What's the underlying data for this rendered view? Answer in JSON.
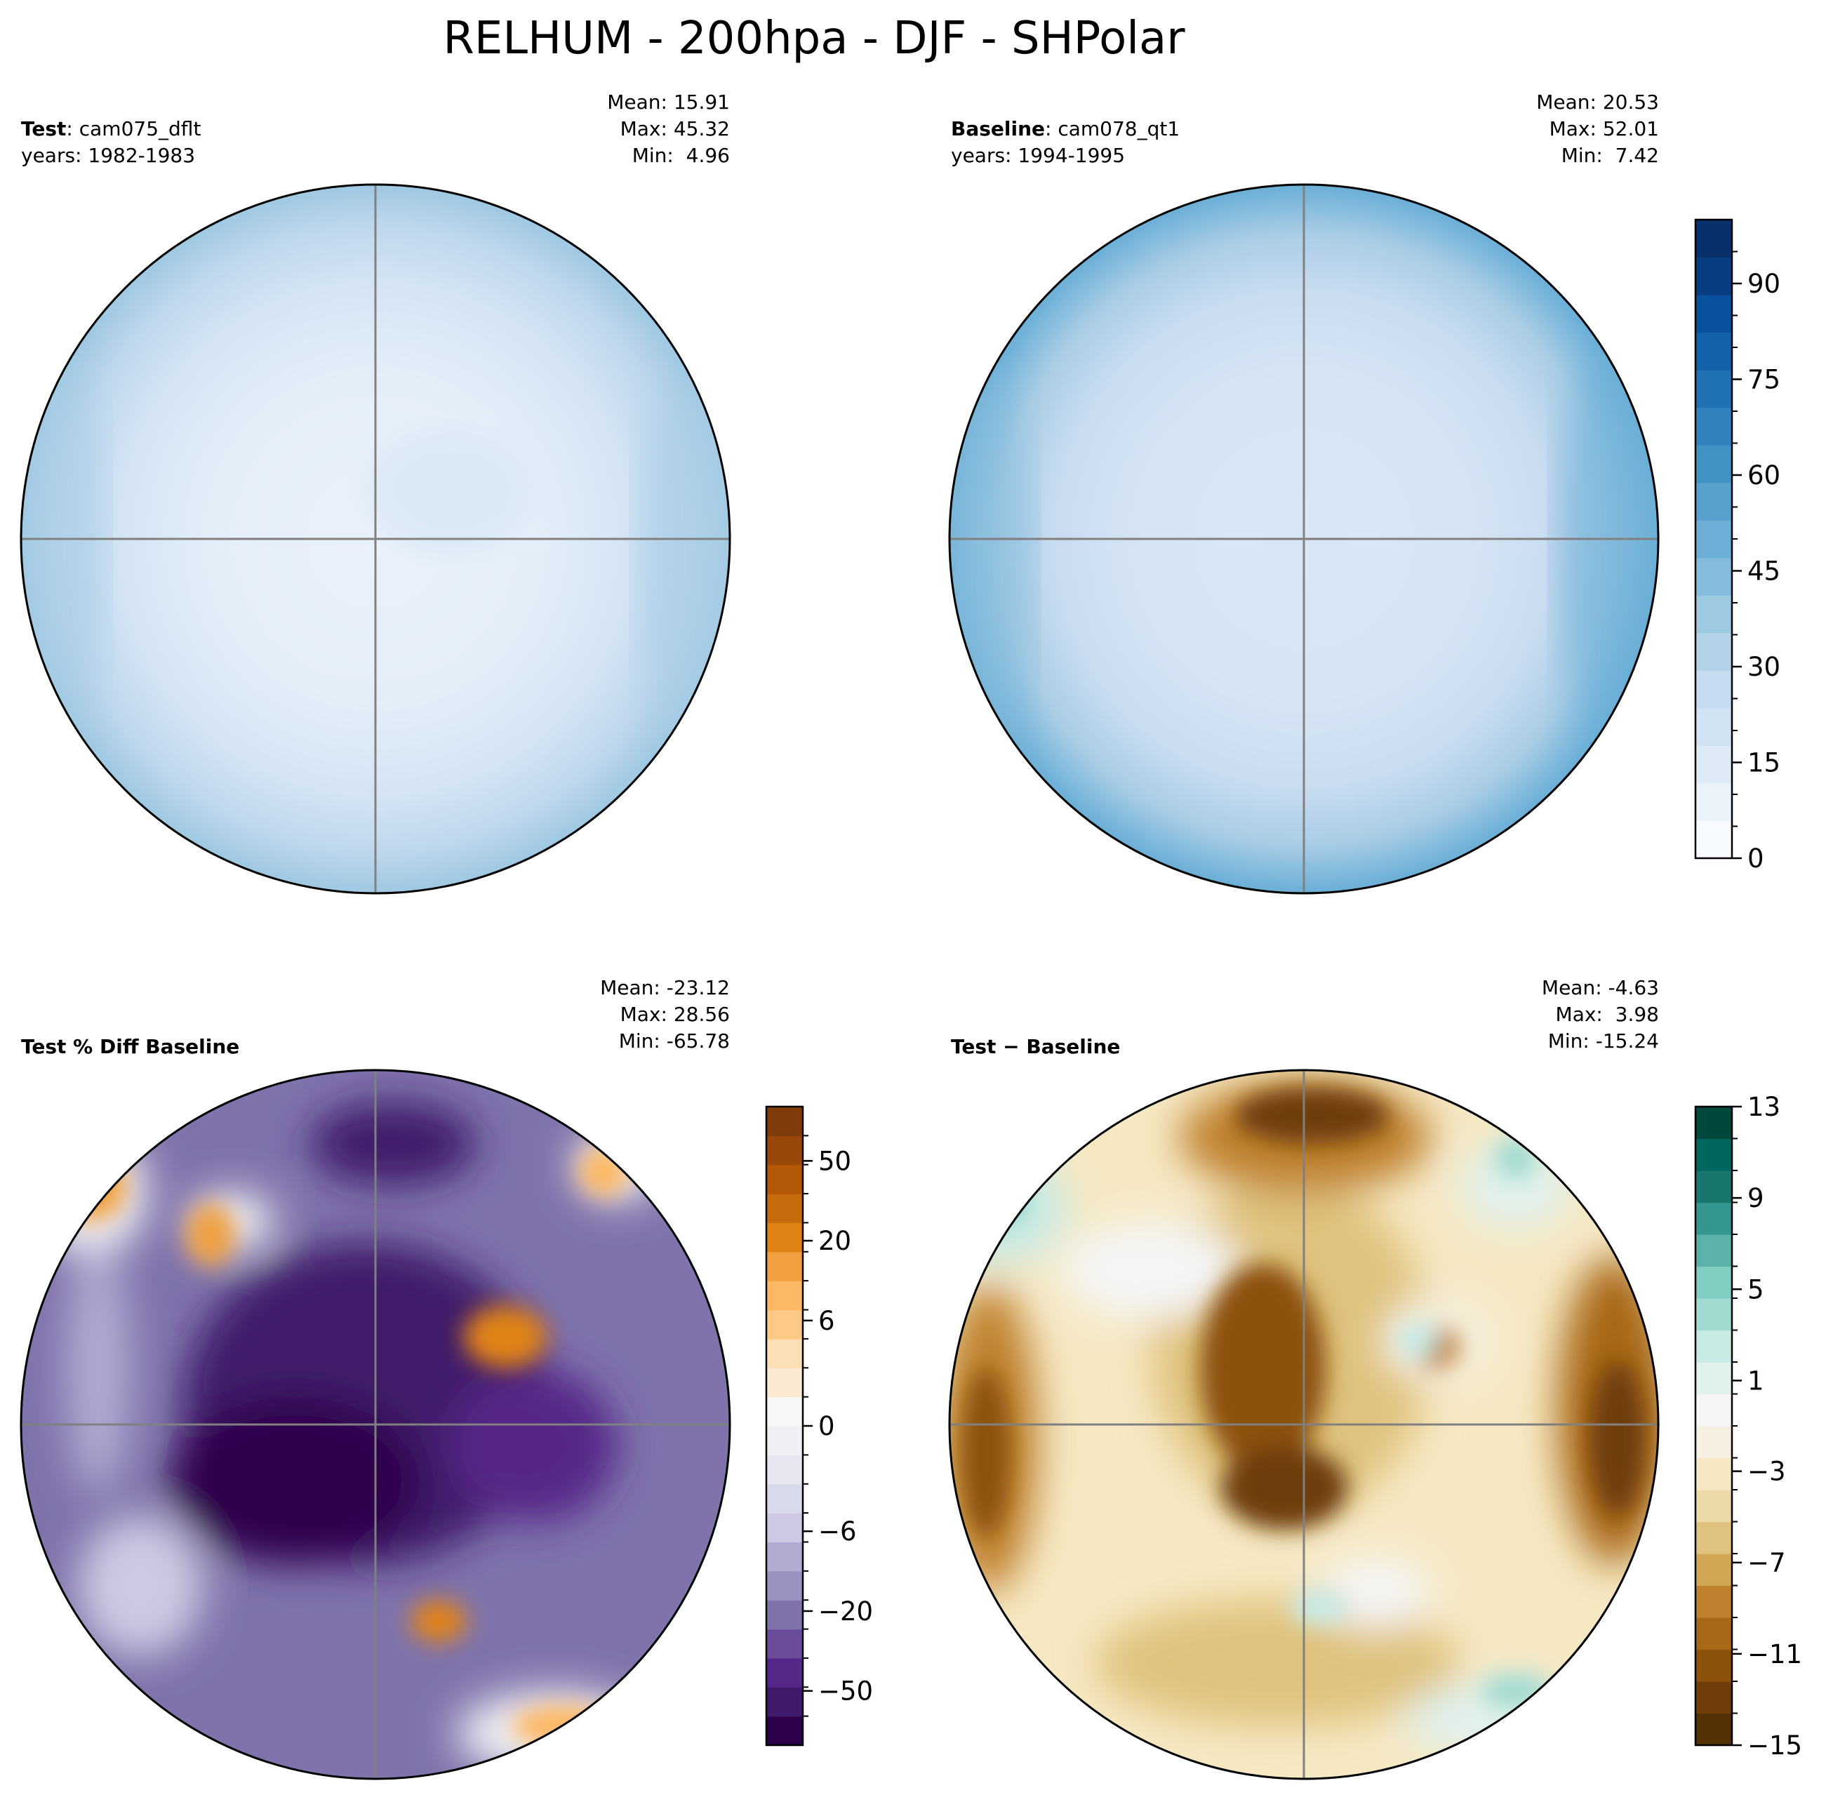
{
  "figure": {
    "title": "RELHUM - 200hpa - DJF - SHPolar"
  },
  "panels": {
    "test": {
      "label_bold": "Test",
      "label_rest": ": cam075_dflt",
      "years": "years: 1982-1983",
      "mean": "Mean: 15.91",
      "max": "Max: 45.32",
      "min": "Min:  4.96"
    },
    "baseline": {
      "label_bold": "Baseline",
      "label_rest": ": cam078_qt1",
      "years": "years: 1994-1995",
      "mean": "Mean: 20.53",
      "max": "Max: 52.01",
      "min": "Min:  7.42"
    },
    "pctdiff": {
      "label_bold": "Test % Diff Baseline",
      "mean": "Mean: -23.12",
      "max": "Max: 28.56",
      "min": "Min: -65.78"
    },
    "diff": {
      "label_bold": "Test − Baseline",
      "mean": "Mean: -4.63",
      "max": "Max:  3.98",
      "min": "Min: -15.24"
    }
  },
  "chart_data": [
    {
      "type": "heatmap",
      "panel": "test",
      "projection": "south polar stereographic",
      "colormap": "Blues",
      "field_description": "relative humidity, low (~5-15) over Antarctica, increasing to ~40 at outer rim",
      "stats": {
        "mean": 15.91,
        "max": 45.32,
        "min": 4.96
      }
    },
    {
      "type": "heatmap",
      "panel": "baseline",
      "projection": "south polar stereographic",
      "colormap": "Blues",
      "stats": {
        "mean": 20.53,
        "max": 52.01,
        "min": 7.42
      },
      "colorbar": {
        "ticks": [
          0,
          15,
          30,
          45,
          60,
          75,
          90
        ],
        "range": [
          0,
          100
        ]
      }
    },
    {
      "type": "heatmap",
      "panel": "pctdiff",
      "projection": "south polar stereographic",
      "colormap": "PuOr",
      "stats": {
        "mean": -23.12,
        "max": 28.56,
        "min": -65.78
      },
      "colorbar": {
        "ticks": [
          50,
          20,
          6,
          0,
          -6,
          -20,
          -50
        ]
      }
    },
    {
      "type": "heatmap",
      "panel": "diff",
      "projection": "south polar stereographic",
      "colormap": "BrBG",
      "stats": {
        "mean": -4.63,
        "max": 3.98,
        "min": -15.24
      },
      "colorbar": {
        "ticks": [
          13,
          9,
          5,
          1,
          -3,
          -7,
          -11,
          -15
        ],
        "range": [
          -15,
          13
        ]
      }
    }
  ],
  "colorbars": {
    "blues": {
      "ticks": [
        "90",
        "75",
        "60",
        "45",
        "30",
        "15",
        "0"
      ],
      "colors": [
        "#f7fbff",
        "#ebf3fb",
        "#deebf7",
        "#d2e3f3",
        "#c6dbef",
        "#b3d3e8",
        "#9ecae1",
        "#85bcdc",
        "#6baed6",
        "#58a1cf",
        "#4292c6",
        "#3282be",
        "#2171b5",
        "#1361a9",
        "#08519c",
        "#083e81",
        "#08306b"
      ]
    },
    "puor": {
      "ticks": [
        "50",
        "20",
        "6",
        "0",
        "−6",
        "−20",
        "−50"
      ],
      "colors": [
        "#2d004b",
        "#3f1a6b",
        "#542788",
        "#6a4c9a",
        "#8073ac",
        "#9a92c0",
        "#b2abd2",
        "#cdc9e2",
        "#d8daeb",
        "#e6e6f0",
        "#f0eff4",
        "#f7f7f7",
        "#fce9d2",
        "#fee0b6",
        "#fdc985",
        "#fdb863",
        "#f0a040",
        "#e08214",
        "#c86b0e",
        "#b35806",
        "#97480a",
        "#7f3b08"
      ]
    },
    "brbg": {
      "ticks": [
        "13",
        "9",
        "5",
        "1",
        "−3",
        "−7",
        "−11",
        "−15"
      ],
      "colors": [
        "#543005",
        "#6e3d08",
        "#8c510a",
        "#a86818",
        "#bf812d",
        "#d0a755",
        "#dfc27d",
        "#ebd9a9",
        "#f6e8c3",
        "#f5f0e2",
        "#f5f5f5",
        "#e0f1ee",
        "#c7eae5",
        "#a1dad0",
        "#80cdc1",
        "#5ab2a8",
        "#35978f",
        "#18766c",
        "#01665e",
        "#00473c"
      ]
    }
  }
}
